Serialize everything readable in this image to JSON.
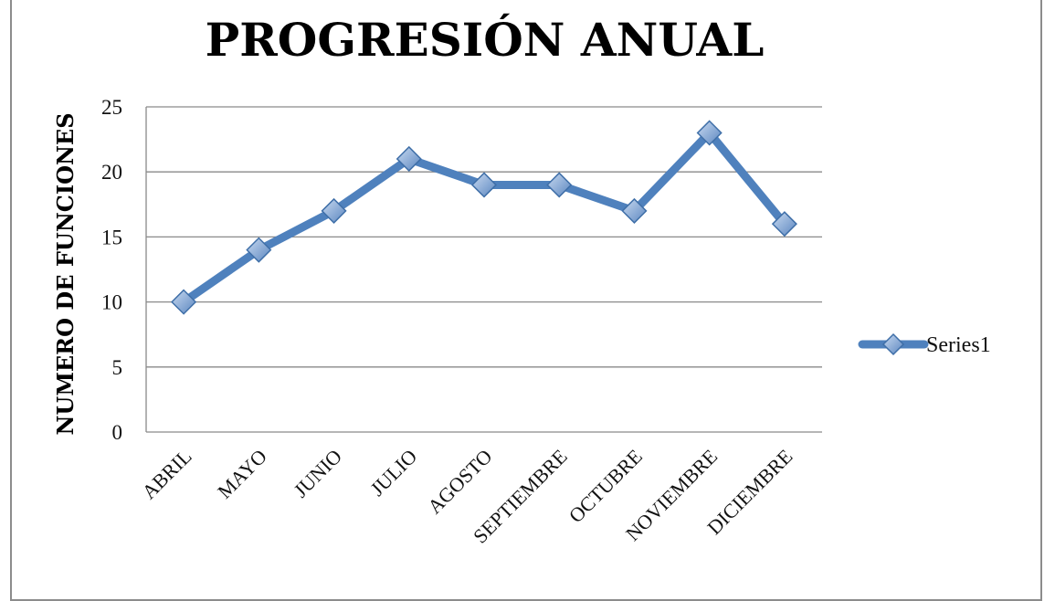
{
  "chart_data": {
    "type": "line",
    "title": "PROGRESIÓN ANUAL",
    "xlabel": "",
    "ylabel": "NUMERO DE FUNCIONES",
    "categories": [
      "ABRIL",
      "MAYO",
      "JUNIO",
      "JULIO",
      "AGOSTO",
      "SEPTIEMBRE",
      "OCTUBRE",
      "NOVIEMBRE",
      "DICIEMBRE"
    ],
    "series": [
      {
        "name": "Series1",
        "values": [
          10,
          14,
          17,
          21,
          19,
          19,
          17,
          23,
          16
        ],
        "color": "#4f81bd"
      }
    ],
    "ylim": [
      0,
      25
    ],
    "yticks": [
      "0",
      "5",
      "10",
      "15",
      "20",
      "25"
    ],
    "grid": true,
    "legend": "right"
  }
}
